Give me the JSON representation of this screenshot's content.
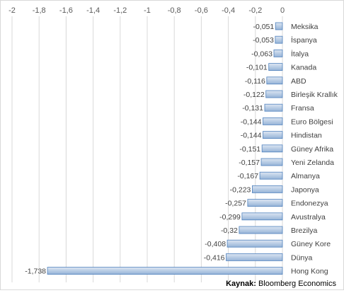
{
  "chart_data": {
    "type": "bar",
    "orientation": "horizontal",
    "categories": [
      "Meksika",
      "İspanya",
      "İtalya",
      "Kanada",
      "ABD",
      "Birleşik Krallık",
      "Fransa",
      "Euro Bölgesi",
      "Hindistan",
      "Güney Afrika",
      "Yeni Zelanda",
      "Almanya",
      "Japonya",
      "Endonezya",
      "Avustralya",
      "Brezilya",
      "Güney Kore",
      "Dünya",
      "Hong Kong"
    ],
    "values": [
      -0.051,
      -0.053,
      -0.063,
      -0.101,
      -0.116,
      -0.122,
      -0.131,
      -0.144,
      -0.144,
      -0.151,
      -0.157,
      -0.167,
      -0.223,
      -0.257,
      -0.299,
      -0.32,
      -0.408,
      -0.416,
      -1.738
    ],
    "value_labels": [
      "-0,051",
      "-0,053",
      "-0,063",
      "-0,101",
      "-0,116",
      "-0,122",
      "-0,131",
      "-0,144",
      "-0,144",
      "-0,151",
      "-0,157",
      "-0,167",
      "-0,223",
      "-0,257",
      "-0,299",
      "-0,32",
      "-0,408",
      "-0,416",
      "-1,738"
    ],
    "xlim": [
      -2,
      0
    ],
    "axis_position": "top",
    "ticks": [
      -2,
      -1.8,
      -1.6,
      -1.4,
      -1.2,
      -1,
      -0.8,
      -0.6,
      -0.4,
      -0.2,
      0
    ],
    "tick_labels": [
      "-2",
      "-1,8",
      "-1,6",
      "-1,4",
      "-1,2",
      "-1",
      "-0,8",
      "-0,6",
      "-0,4",
      "-0,2",
      "0"
    ],
    "gridlines": true,
    "legend": false
  },
  "source": {
    "label": "Kaynak:",
    "text": "Bloomberg Economics"
  },
  "colors": {
    "bar_top": "#dce6f2",
    "bar_bottom": "#95b3d7",
    "bar_border": "#4f81bd",
    "grid": "#d9d9d9"
  }
}
